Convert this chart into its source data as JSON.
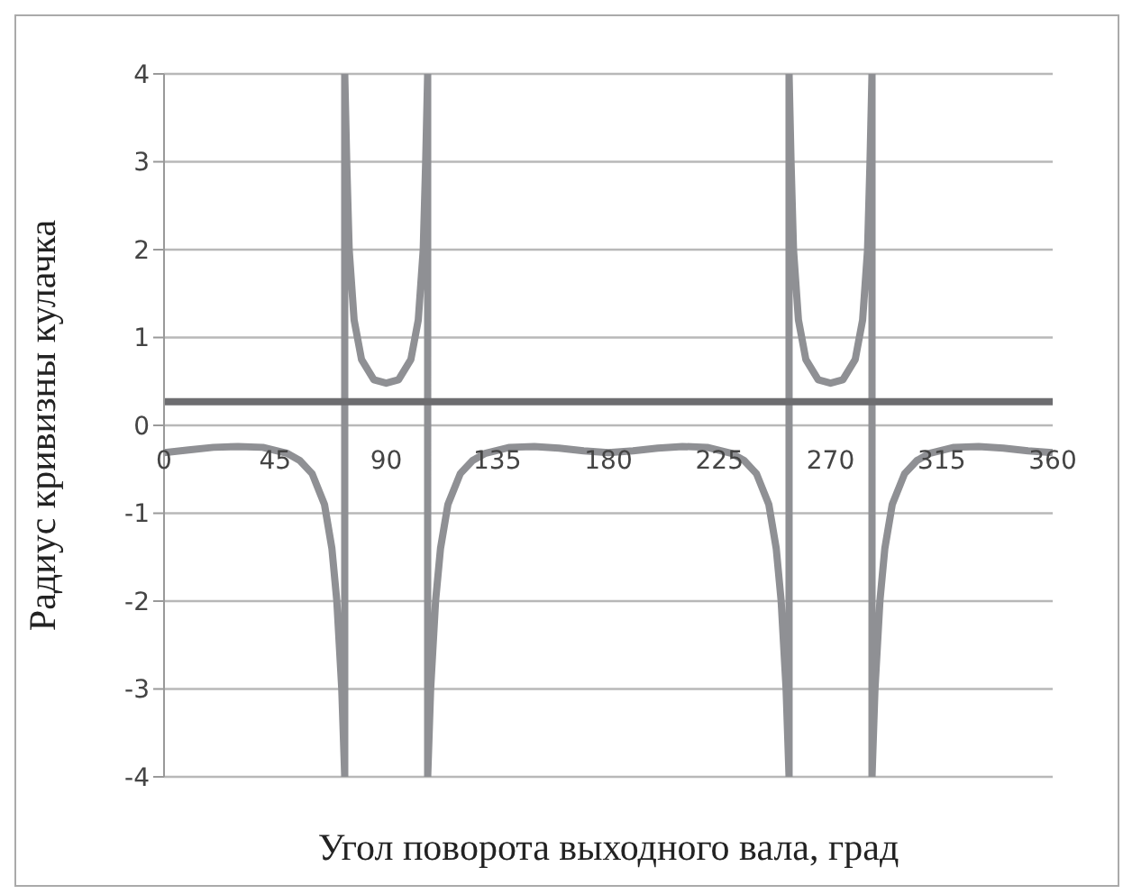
{
  "chart_data": {
    "type": "line",
    "xlabel": "Угол поворота выходного вала, град",
    "ylabel": "Радиус кривизны кулачка",
    "x": [
      0,
      10,
      20,
      30,
      40,
      50,
      55,
      60,
      65,
      68,
      70,
      72,
      73.2,
      73.2,
      74,
      75,
      77,
      80,
      85,
      90,
      95,
      100,
      103,
      105,
      106,
      106.8,
      106.8,
      108,
      110,
      112,
      115,
      120,
      125,
      130,
      140,
      150,
      160,
      170,
      180,
      190,
      200,
      210,
      220,
      230,
      235,
      240,
      245,
      248,
      250,
      252,
      253.2,
      253.2,
      254,
      255,
      257,
      260,
      265,
      270,
      275,
      280,
      283,
      285,
      286,
      286.8,
      286.8,
      288,
      290,
      292,
      295,
      300,
      305,
      310,
      320,
      330,
      340,
      350,
      360
    ],
    "series": [
      {
        "color": "#8f9094",
        "values": [
          -0.31,
          -0.28,
          -0.25,
          -0.24,
          -0.25,
          -0.32,
          -0.4,
          -0.55,
          -0.9,
          -1.4,
          -2,
          -3,
          -4,
          4,
          3,
          2,
          1.2,
          0.75,
          0.52,
          0.48,
          0.52,
          0.75,
          1.2,
          2,
          3,
          4,
          -4,
          -3,
          -2,
          -1.4,
          -0.9,
          -0.55,
          -0.4,
          -0.32,
          -0.25,
          -0.24,
          -0.26,
          -0.29,
          -0.31,
          -0.29,
          -0.26,
          -0.24,
          -0.25,
          -0.32,
          -0.4,
          -0.55,
          -0.9,
          -1.4,
          -2,
          -3,
          -4,
          4,
          3,
          2,
          1.2,
          0.75,
          0.52,
          0.48,
          0.52,
          0.75,
          1.2,
          2,
          3,
          4,
          -4,
          -3,
          -2,
          -1.4,
          -0.9,
          -0.55,
          -0.4,
          -0.32,
          -0.25,
          -0.24,
          -0.26,
          -0.29,
          -0.31
        ]
      },
      {
        "type": "line",
        "color": "#6d6d70",
        "x": [
          0,
          360
        ],
        "values": [
          0.27,
          0.27
        ]
      }
    ],
    "xlim": [
      0,
      360
    ],
    "xticks": [
      0,
      45,
      90,
      135,
      180,
      225,
      270,
      315,
      360
    ],
    "ylim": [
      -4,
      4
    ],
    "yticks": [
      -4,
      -3,
      -2,
      -1,
      0,
      1,
      2,
      3,
      4
    ],
    "grid": "y",
    "marker": "none",
    "line_style": "solid"
  }
}
